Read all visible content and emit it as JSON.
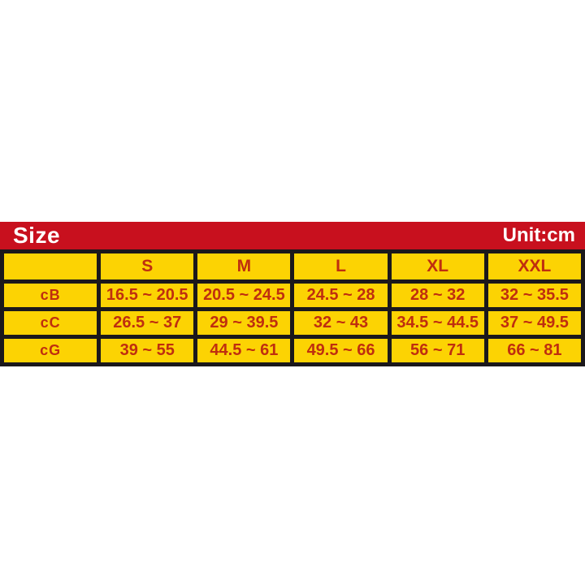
{
  "banner": {
    "title": "Size",
    "unit_label": "Unit:cm",
    "bg_color": "#c8101e",
    "text_color": "#ffffff"
  },
  "chart_data": {
    "type": "table",
    "title": "Size",
    "unit": "cm",
    "columns": [
      "",
      "S",
      "M",
      "L",
      "XL",
      "XXL"
    ],
    "rows": [
      {
        "label": "cB",
        "values": [
          "16.5 ~ 20.5",
          "20.5 ~ 24.5",
          "24.5 ~ 28",
          "28 ~ 32",
          "32 ~ 35.5"
        ]
      },
      {
        "label": "cC",
        "values": [
          "26.5 ~ 37",
          "29 ~ 39.5",
          "32 ~ 43",
          "34.5 ~ 44.5",
          "37 ~ 49.5"
        ]
      },
      {
        "label": "cG",
        "values": [
          "39 ~ 55",
          "44.5 ~ 61",
          "49.5 ~ 66",
          "56 ~ 71",
          "66 ~ 81"
        ]
      }
    ],
    "colors": {
      "cell_bg": "#fcd303",
      "border": "#1b181b",
      "text": "#bf2e0f"
    },
    "layout": {
      "grid": "on",
      "header_row": true,
      "label_column": true
    }
  }
}
